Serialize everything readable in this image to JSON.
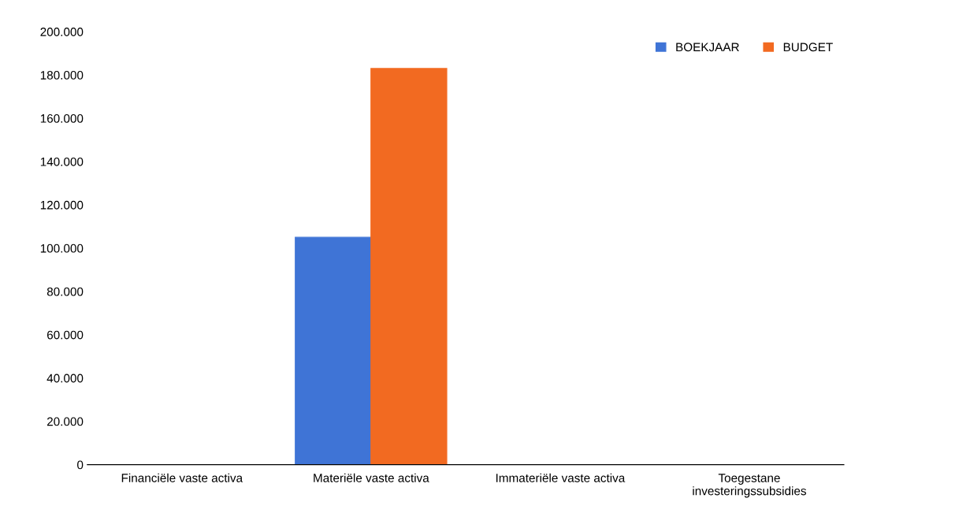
{
  "chart_data": {
    "type": "bar",
    "categories": [
      "Financiële vaste activa",
      "Materiële vaste activa",
      "Immateriële vaste activa",
      "Toegestane\ninvesteringssubsidies"
    ],
    "series": [
      {
        "name": "BOEKJAAR",
        "color": "#3f74d6",
        "values": [
          0,
          105000,
          0,
          0
        ]
      },
      {
        "name": "BUDGET",
        "color": "#f26a21",
        "values": [
          0,
          183000,
          0,
          0
        ]
      }
    ],
    "ylim": [
      0,
      200000
    ],
    "yticks": [
      {
        "value": 0,
        "label": "0"
      },
      {
        "value": 20000,
        "label": "20.000"
      },
      {
        "value": 40000,
        "label": "40.000"
      },
      {
        "value": 60000,
        "label": "60.000"
      },
      {
        "value": 80000,
        "label": "80.000"
      },
      {
        "value": 100000,
        "label": "100.000"
      },
      {
        "value": 120000,
        "label": "120.000"
      },
      {
        "value": 140000,
        "label": "140.000"
      },
      {
        "value": 160000,
        "label": "160.000"
      },
      {
        "value": 180000,
        "label": "180.000"
      },
      {
        "value": 200000,
        "label": "200.000"
      }
    ],
    "legend": "top right"
  }
}
